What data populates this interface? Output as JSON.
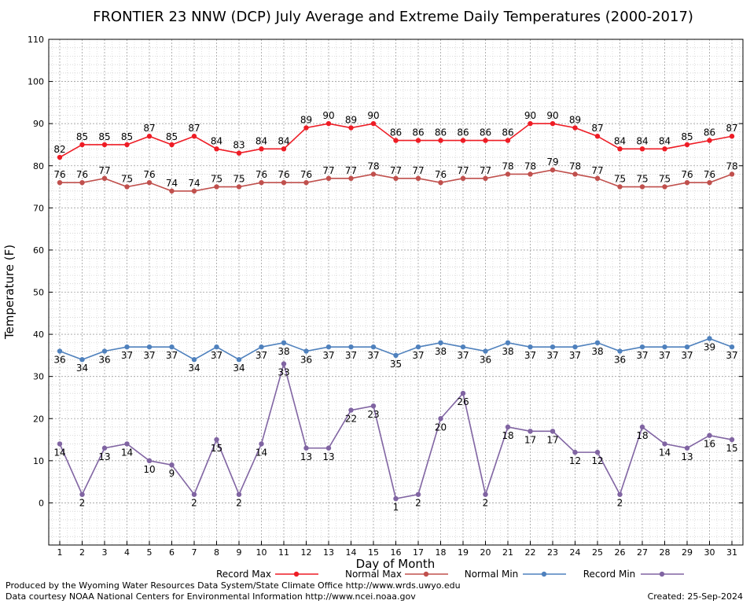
{
  "chart_data": {
    "type": "line",
    "title": "FRONTIER 23 NNW (DCP) July Average and Extreme Daily Temperatures (2000-2017)",
    "xlabel": "Day of Month",
    "ylabel": "Temperature (F)",
    "ylim": [
      -10,
      110
    ],
    "yticks": [
      0,
      10,
      20,
      30,
      40,
      50,
      60,
      70,
      80,
      90,
      100,
      110
    ],
    "x": [
      1,
      2,
      3,
      4,
      5,
      6,
      7,
      8,
      9,
      10,
      11,
      12,
      13,
      14,
      15,
      16,
      17,
      18,
      19,
      20,
      21,
      22,
      23,
      24,
      25,
      26,
      27,
      28,
      29,
      30,
      31
    ],
    "grid": true,
    "legend_position": "bottom",
    "series": [
      {
        "name": "Record Max",
        "color": "#ee1c25",
        "label_pos": "above",
        "values": [
          82,
          85,
          85,
          85,
          87,
          85,
          87,
          84,
          83,
          84,
          84,
          89,
          90,
          89,
          90,
          86,
          86,
          86,
          86,
          86,
          86,
          90,
          90,
          89,
          87,
          84,
          84,
          84,
          85,
          86,
          87
        ]
      },
      {
        "name": "Normal Max",
        "color": "#c0504d",
        "label_pos": "above",
        "values": [
          76,
          76,
          77,
          75,
          76,
          74,
          74,
          75,
          75,
          76,
          76,
          76,
          77,
          77,
          78,
          77,
          77,
          76,
          77,
          77,
          78,
          78,
          79,
          78,
          77,
          75,
          75,
          75,
          76,
          76,
          78
        ]
      },
      {
        "name": "Normal Min",
        "color": "#4f81bd",
        "label_pos": "below",
        "values": [
          36,
          34,
          36,
          37,
          37,
          37,
          34,
          37,
          34,
          37,
          38,
          36,
          37,
          37,
          37,
          35,
          37,
          38,
          37,
          36,
          38,
          37,
          37,
          37,
          38,
          36,
          37,
          37,
          37,
          39,
          37
        ]
      },
      {
        "name": "Record Min",
        "color": "#8064a2",
        "label_pos": "below",
        "values": [
          14,
          2,
          13,
          14,
          10,
          9,
          2,
          15,
          2,
          14,
          33,
          13,
          13,
          22,
          23,
          1,
          2,
          20,
          26,
          2,
          18,
          17,
          17,
          12,
          12,
          2,
          18,
          14,
          13,
          16,
          15
        ]
      }
    ]
  },
  "footer": {
    "produced_by": "Produced by the Wyoming Water Resources Data System/State Climate Office http://www.wrds.uwyo.edu",
    "data_courtesy": "Data courtesy NOAA National Centers for Environmental Information http://www.ncei.noaa.gov",
    "created": "Created:  25-Sep-2024"
  }
}
